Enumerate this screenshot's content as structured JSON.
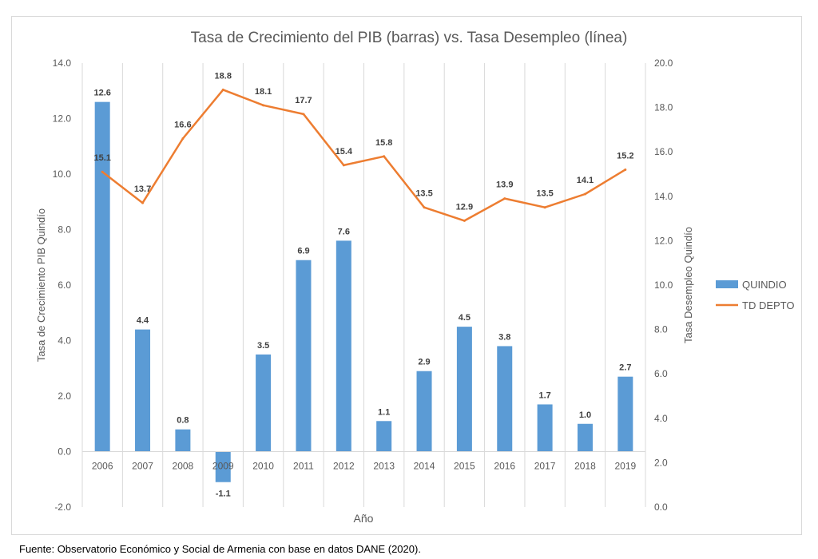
{
  "colors": {
    "bar": "#5b9bd5",
    "line": "#ed7d31",
    "grid": "#d9d9d9",
    "axis_text": "#595959",
    "label_text": "#404040"
  },
  "source_note": "Fuente: Observatorio Económico y Social de Armenia con base en datos DANE (2020).",
  "chart_data": {
    "type": "bar",
    "title": "Tasa de Crecimiento del PIB (barras) vs. Tasa Desempleo (línea)",
    "xlabel": "Año",
    "ylabel": "Tasa de Crecimiento PIB Quindío",
    "y2label": "Tasa Desempleo Quindío",
    "categories": [
      "2006",
      "2007",
      "2008",
      "2009",
      "2010",
      "2011",
      "2012",
      "2013",
      "2014",
      "2015",
      "2016",
      "2017",
      "2018",
      "2019"
    ],
    "series": [
      {
        "name": "QUINDIO",
        "type": "bar",
        "axis": "left",
        "values": [
          12.6,
          4.4,
          0.8,
          -1.1,
          3.5,
          6.9,
          7.6,
          1.1,
          2.9,
          4.5,
          3.8,
          1.7,
          1.0,
          2.7
        ]
      },
      {
        "name": "TD DEPTO",
        "type": "line",
        "axis": "right",
        "values": [
          15.1,
          13.7,
          16.6,
          18.8,
          18.1,
          17.7,
          15.4,
          15.8,
          13.5,
          12.9,
          13.9,
          13.5,
          14.1,
          15.2
        ]
      }
    ],
    "ylim": [
      -2.0,
      14.0
    ],
    "yticks": [
      "-2.0",
      "0.0",
      "2.0",
      "4.0",
      "6.0",
      "8.0",
      "10.0",
      "12.0",
      "14.0"
    ],
    "y2lim": [
      0.0,
      20.0
    ],
    "y2ticks": [
      "0.0",
      "2.0",
      "4.0",
      "6.0",
      "8.0",
      "10.0",
      "12.0",
      "14.0",
      "16.0",
      "18.0",
      "20.0"
    ],
    "grid": "vertical category separators",
    "legend_position": "right"
  }
}
